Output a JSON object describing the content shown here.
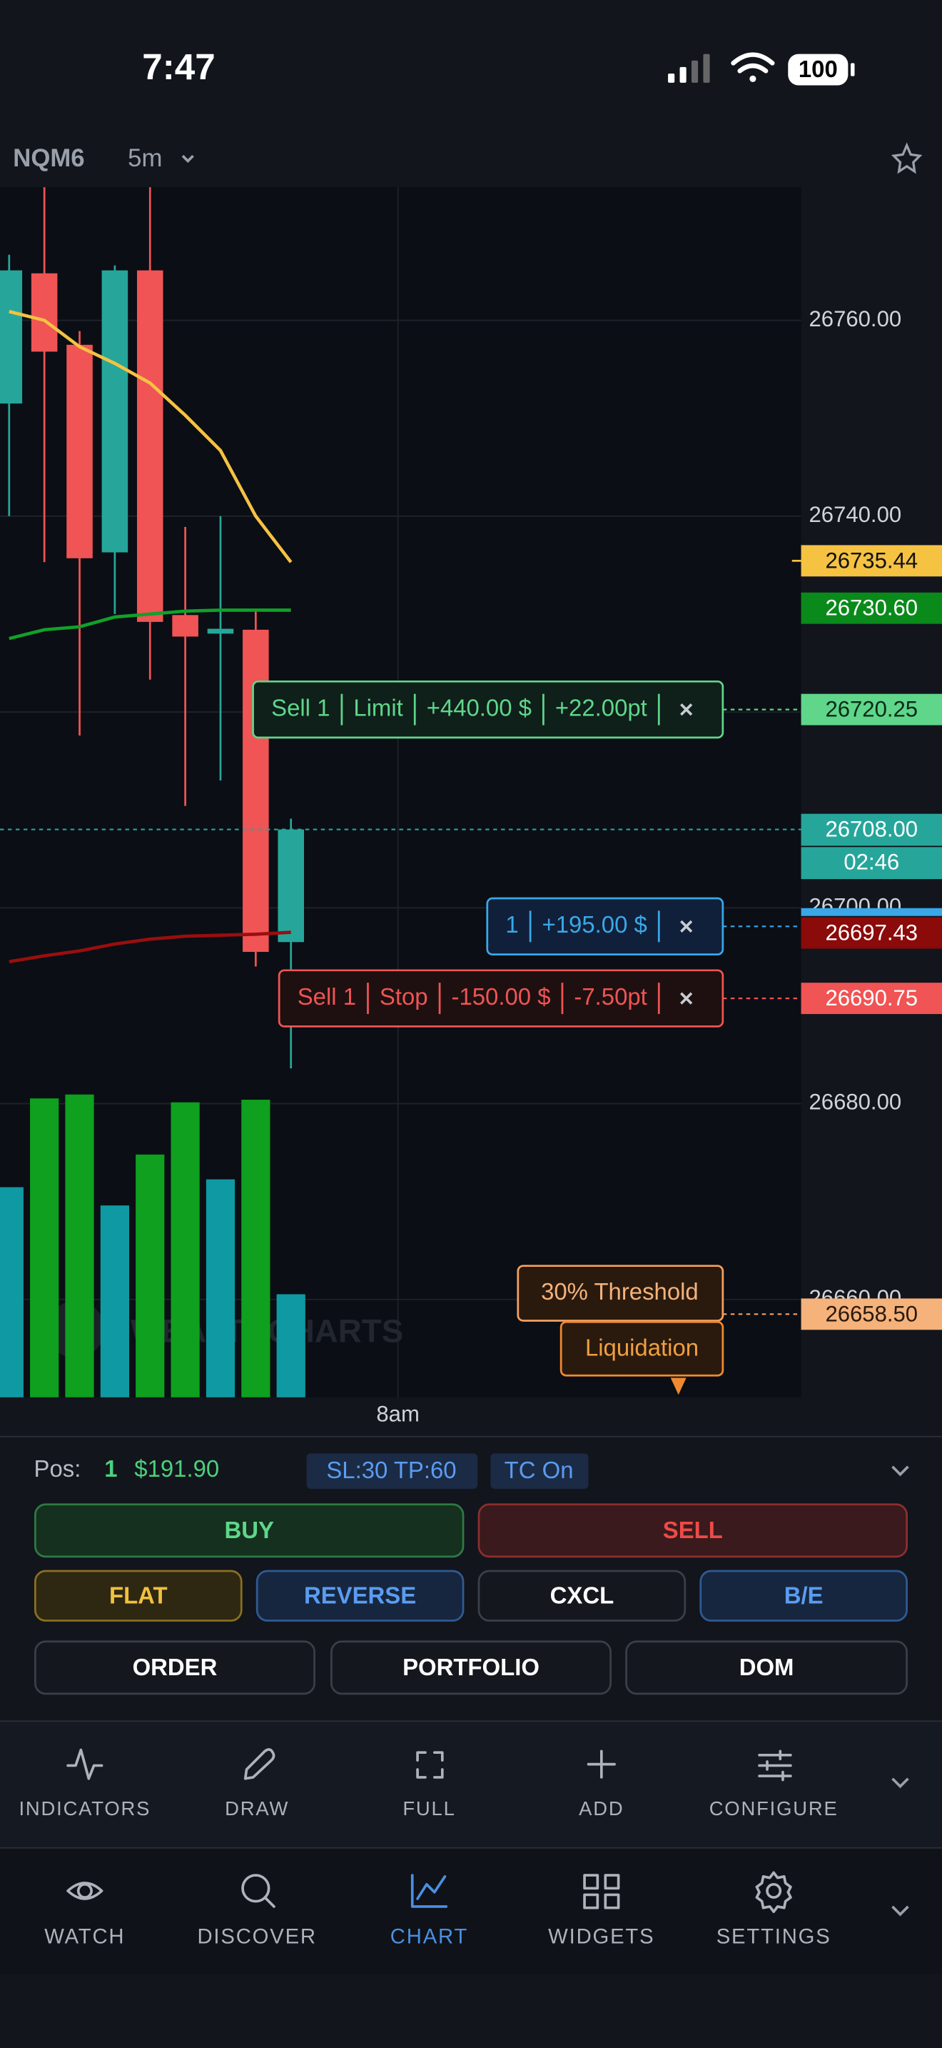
{
  "status_bar": {
    "time": "7:47",
    "battery": "100"
  },
  "header": {
    "symbol": "NQM6",
    "interval": "5m"
  },
  "chart_data": {
    "type": "candlestick",
    "candles": {
      "open": [
        26751.5,
        26764.8,
        26757.5,
        26736.3,
        26765.1,
        26729.9,
        26728.0,
        26728.4,
        26696.5
      ],
      "high": [
        26766.7,
        26773.6,
        26758.9,
        26765.6,
        26773.6,
        26738.9,
        26740.0,
        26730.4,
        26709.1
      ],
      "low": [
        26740.0,
        26735.3,
        26717.6,
        26730.0,
        26723.3,
        26710.4,
        26713.0,
        26694.0,
        26683.6
      ],
      "close": [
        26765.1,
        26756.8,
        26735.7,
        26765.1,
        26729.2,
        26727.7,
        26728.5,
        26695.5,
        26708.0
      ]
    },
    "up_color": "#26a69a",
    "down_color": "#f05454",
    "volume": [
      161,
      229,
      232,
      147,
      186,
      226,
      167,
      228,
      79
    ],
    "volume_colors": [
      "#0f9aa3",
      "#0ea01e",
      "#0ea01e",
      "#0f9aa3",
      "#0ea01e",
      "#0ea01e",
      "#0f9aa3",
      "#0ea01e",
      "#0f9aa3"
    ],
    "lines": [
      {
        "color": "#f5c242",
        "values": [
          26760.9,
          26760.0,
          26757.3,
          26755.6,
          26753.6,
          26750.3,
          26746.7,
          26740.0,
          26735.3
        ]
      },
      {
        "color": "#12a02a",
        "values": [
          26727.5,
          26728.4,
          26728.7,
          26729.7,
          26730.0,
          26730.3,
          26730.4,
          26730.4,
          26730.4
        ]
      },
      {
        "color": "#9a0e0e",
        "values": [
          26694.5,
          26695.1,
          26695.6,
          26696.3,
          26696.8,
          26697.1,
          26697.2,
          26697.3,
          26697.5
        ]
      }
    ],
    "ylim": [
      26650,
      26773.6
    ],
    "yticks": [
      {
        "value": 26760,
        "label": "26760.00"
      },
      {
        "value": 26740,
        "label": "26740.00"
      },
      {
        "value": 26720,
        "label": "26720.00"
      },
      {
        "value": 26700,
        "label": "26700.00"
      },
      {
        "value": 26680,
        "label": "26680.00"
      },
      {
        "value": 26660,
        "label": "26660.00"
      }
    ],
    "xticks": [
      {
        "value": 11,
        "label": "8am"
      }
    ],
    "grid": true,
    "current_price": {
      "value": 26708,
      "label": "26708.00",
      "countdown": "02:46",
      "color": "#26a69a"
    },
    "price_labels": [
      {
        "value": 26735.44,
        "label": "26735.44",
        "color": "#f5c242",
        "text_color": "#111111"
      },
      {
        "value": 26730.6,
        "label": "26730.60",
        "color": "#0a8a1a",
        "text_color": "#ffffff"
      },
      {
        "value": 26720.25,
        "label": "26720.25",
        "color": "#5fd68a",
        "text_color": "#0d2a18"
      },
      {
        "value": 26697.43,
        "label": "26697.43",
        "color": "#8b0a0a",
        "text_color": "#ffffff"
      },
      {
        "value": 26690.75,
        "label": "26690.75",
        "color": "#f05454",
        "text_color": "#ffffff"
      },
      {
        "value": 26658.5,
        "label": "26658.50",
        "color": "#f5b27a",
        "text_color": "#2a1a0e"
      }
    ],
    "orders": [
      {
        "price": 26720.25,
        "parts": [
          "Sell 1",
          "Limit",
          "+440.00 $",
          "+22.00pt"
        ],
        "color": "#5fd68a",
        "fill": "#0f1f1a"
      },
      {
        "price": 26698.1,
        "parts": [
          "1",
          "+195.00 $"
        ],
        "color": "#3aa8e8",
        "fill": "#10203a"
      },
      {
        "price": 26690.75,
        "parts": [
          "Sell 1",
          "Stop",
          "-150.00 $",
          "-7.50pt"
        ],
        "color": "#f05454",
        "fill": "#1e1010"
      }
    ],
    "threshold": {
      "price": 26658.5,
      "label": "30% Threshold",
      "liquidation": "Liquidation"
    },
    "watermark": "WEALTHCHARTS"
  },
  "position": {
    "label": "Pos:",
    "qty": "1",
    "pnl": "$191.90",
    "sl_tp": "SL:30 TP:60",
    "tc": "TC On"
  },
  "buttons": [
    "BUY",
    "SELL",
    "FLAT",
    "REVERSE",
    "CXCL",
    "B/E",
    "ORDER",
    "PORTFOLIO",
    "DOM"
  ],
  "toolbar": [
    "INDICATORS",
    "DRAW",
    "FULL",
    "ADD",
    "CONFIGURE"
  ],
  "nav": [
    "WATCH",
    "DISCOVER",
    "CHART",
    "WIDGETS",
    "SETTINGS"
  ]
}
